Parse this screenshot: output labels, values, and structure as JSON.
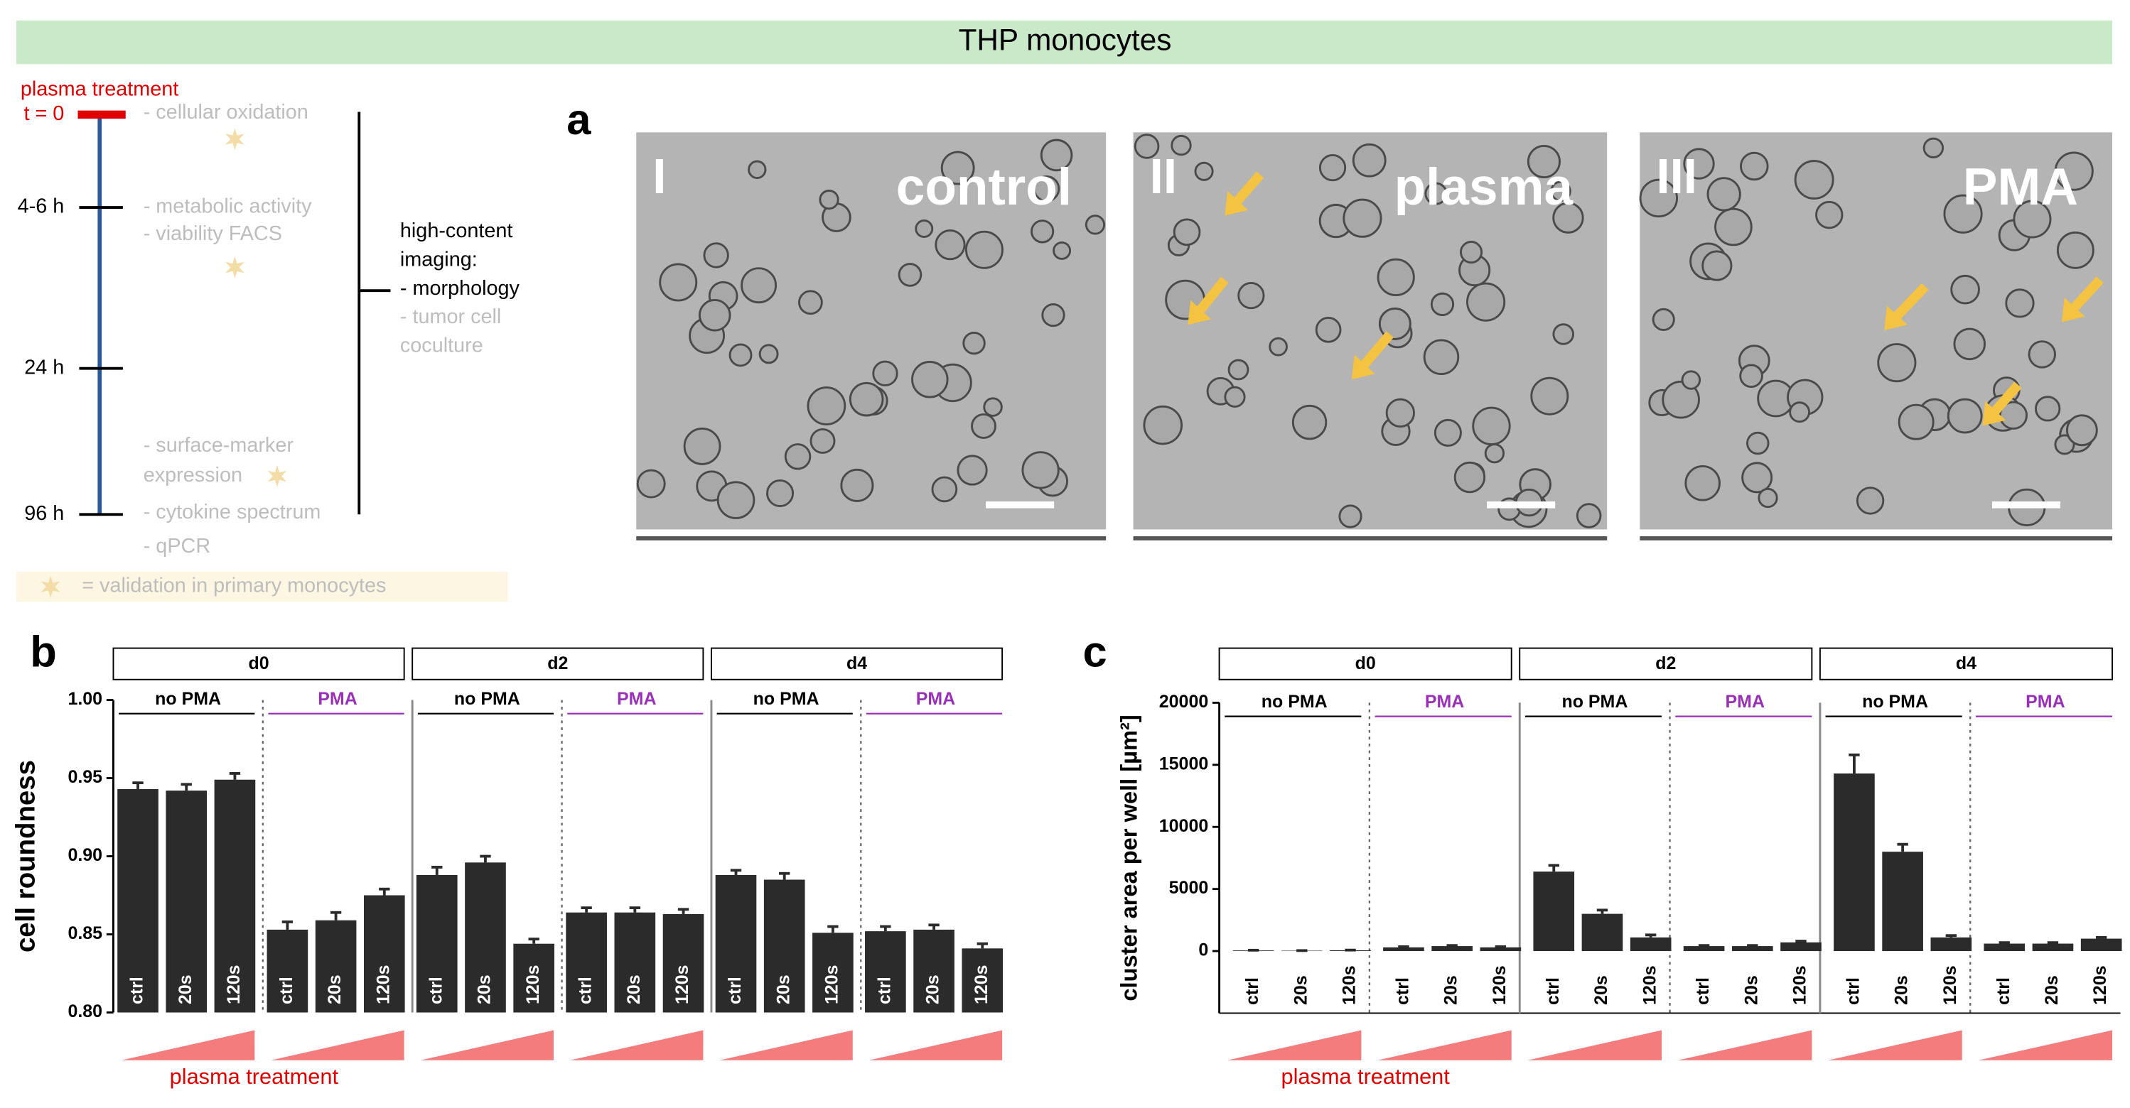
{
  "header": {
    "title": "THP monocytes"
  },
  "timeline": {
    "title": "plasma treatment",
    "times": [
      "t = 0",
      "4-6 h",
      "24 h",
      "96 h"
    ],
    "assays": [
      "- cellular oxidation",
      "- metabolic activity",
      "- viability FACS",
      "- surface-marker",
      "expression",
      "- cytokine spectrum",
      "- qPCR"
    ],
    "imaging": [
      "high-content",
      "imaging:",
      "- morphology",
      "- tumor cell",
      "coculture"
    ],
    "legend": "= validation in primary monocytes"
  },
  "panel_a": {
    "label": "a",
    "images": [
      {
        "numeral": "I",
        "name": "control"
      },
      {
        "numeral": "II",
        "name": "plasma"
      },
      {
        "numeral": "III",
        "name": "PMA"
      }
    ]
  },
  "chart_data": [
    {
      "type": "bar",
      "panel": "b",
      "ylabel": "cell roundness",
      "color": "#2b2b2b",
      "groups": [
        "d0",
        "d2",
        "d4"
      ],
      "subgroups": [
        {
          "name": "no PMA",
          "color": "#000000"
        },
        {
          "name": "PMA",
          "color": "#9b30b8"
        },
        {
          "name": "no PMA",
          "color": "#000000"
        },
        {
          "name": "PMA",
          "color": "#9b30b8"
        },
        {
          "name": "no PMA",
          "color": "#000000"
        },
        {
          "name": "PMA",
          "color": "#9b30b8"
        }
      ],
      "categories": [
        "ctrl",
        "20s",
        "120s",
        "ctrl",
        "20s",
        "120s",
        "ctrl",
        "20s",
        "120s",
        "ctrl",
        "20s",
        "120s",
        "ctrl",
        "20s",
        "120s",
        "ctrl",
        "20s",
        "120s"
      ],
      "values": [
        0.943,
        0.942,
        0.949,
        0.853,
        0.859,
        0.875,
        0.888,
        0.896,
        0.844,
        0.864,
        0.864,
        0.863,
        0.888,
        0.885,
        0.851,
        0.852,
        0.853,
        0.841
      ],
      "errors": [
        0.004,
        0.004,
        0.004,
        0.005,
        0.005,
        0.004,
        0.005,
        0.004,
        0.003,
        0.003,
        0.003,
        0.003,
        0.003,
        0.004,
        0.004,
        0.003,
        0.003,
        0.003
      ],
      "ylim": [
        0.8,
        1.0
      ],
      "yticks": [
        {
          "value": 0.8,
          "label": "0.80"
        },
        0.85,
        {
          "value": 0.9,
          "label": "0.90"
        },
        0.95,
        {
          "value": 1.0,
          "label": "1.00"
        }
      ],
      "annotation": "plasma treatment"
    },
    {
      "type": "bar",
      "panel": "c",
      "ylabel": "cluster area per well [µm²]",
      "color": "#2b2b2b",
      "groups": [
        "d0",
        "d2",
        "d4"
      ],
      "subgroups": [
        {
          "name": "no PMA",
          "color": "#000000"
        },
        {
          "name": "PMA",
          "color": "#9b30b8"
        },
        {
          "name": "no PMA",
          "color": "#000000"
        },
        {
          "name": "PMA",
          "color": "#9b30b8"
        },
        {
          "name": "no PMA",
          "color": "#000000"
        },
        {
          "name": "PMA",
          "color": "#9b30b8"
        }
      ],
      "categories": [
        "ctrl",
        "20s",
        "120s",
        "ctrl",
        "20s",
        "120s",
        "ctrl",
        "20s",
        "120s",
        "ctrl",
        "20s",
        "120s",
        "ctrl",
        "20s",
        "120s",
        "ctrl",
        "20s",
        "120s"
      ],
      "values": [
        50,
        30,
        60,
        300,
        400,
        300,
        6400,
        3000,
        1100,
        400,
        400,
        700,
        14300,
        8000,
        1100,
        600,
        600,
        1000
      ],
      "errors": [
        20,
        10,
        20,
        50,
        50,
        50,
        500,
        300,
        200,
        50,
        50,
        100,
        1500,
        600,
        150,
        80,
        80,
        100
      ],
      "ylim": [
        -5000,
        20000
      ],
      "yticks": [
        0,
        5000,
        10000,
        15000,
        20000
      ],
      "annotation": "plasma treatment"
    }
  ]
}
